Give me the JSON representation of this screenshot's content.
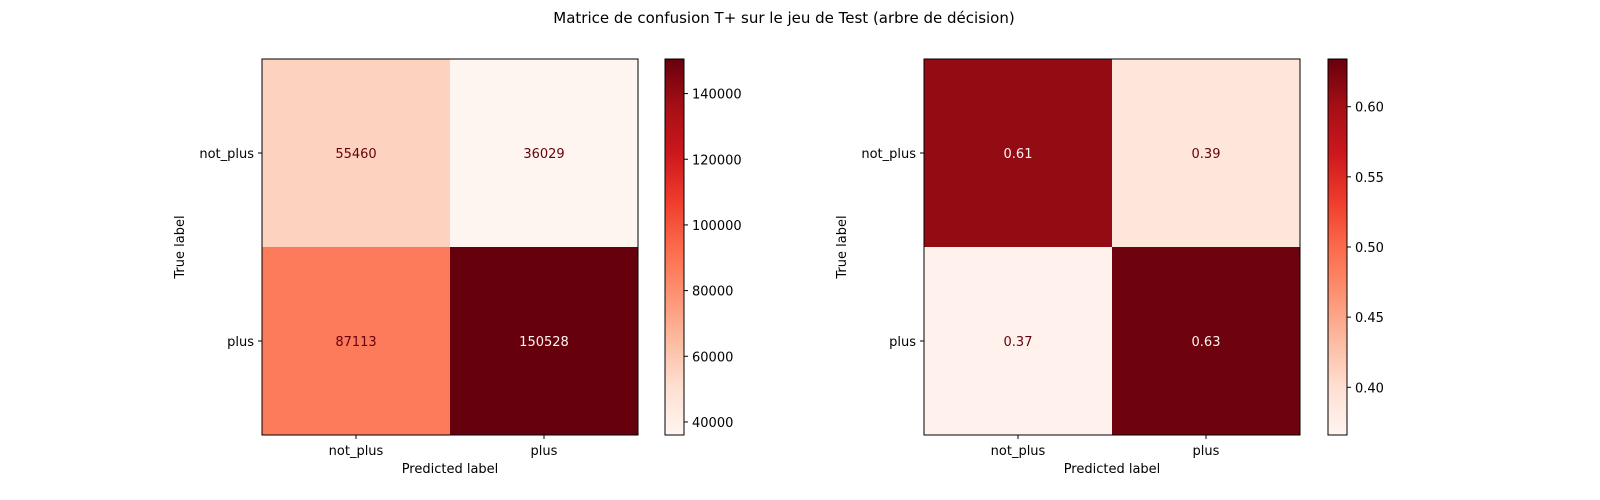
{
  "figure": {
    "title": "Matrice de confusion T+ sur le jeu de Test (arbre de décision)"
  },
  "chart_data": [
    {
      "type": "heatmap",
      "colormap": "Reds",
      "row_categories": [
        "not_plus",
        "plus"
      ],
      "col_categories": [
        "not_plus",
        "plus"
      ],
      "values": [
        [
          55460,
          36029
        ],
        [
          87113,
          150528
        ]
      ],
      "cell_labels": [
        [
          "55460",
          "36029"
        ],
        [
          "87113",
          "150528"
        ]
      ],
      "xlabel": "Predicted label",
      "ylabel": "True label",
      "colorbar": {
        "range": [
          36029,
          150528
        ],
        "ticks": [
          40000,
          60000,
          80000,
          100000,
          120000,
          140000
        ],
        "tick_labels": [
          "40000",
          "60000",
          "80000",
          "100000",
          "120000",
          "140000"
        ]
      },
      "grid": false
    },
    {
      "type": "heatmap",
      "colormap": "Reds",
      "row_categories": [
        "not_plus",
        "plus"
      ],
      "col_categories": [
        "not_plus",
        "plus"
      ],
      "values": [
        [
          0.61,
          0.39
        ],
        [
          0.37,
          0.63
        ]
      ],
      "cell_labels": [
        [
          "0.61",
          "0.39"
        ],
        [
          "0.37",
          "0.63"
        ]
      ],
      "xlabel": "Predicted label",
      "ylabel": "True label",
      "colorbar": {
        "range": [
          0.366,
          0.634
        ],
        "ticks": [
          0.4,
          0.45,
          0.5,
          0.55,
          0.6
        ],
        "tick_labels": [
          "0.40",
          "0.45",
          "0.50",
          "0.55",
          "0.60"
        ]
      },
      "grid": false
    }
  ]
}
